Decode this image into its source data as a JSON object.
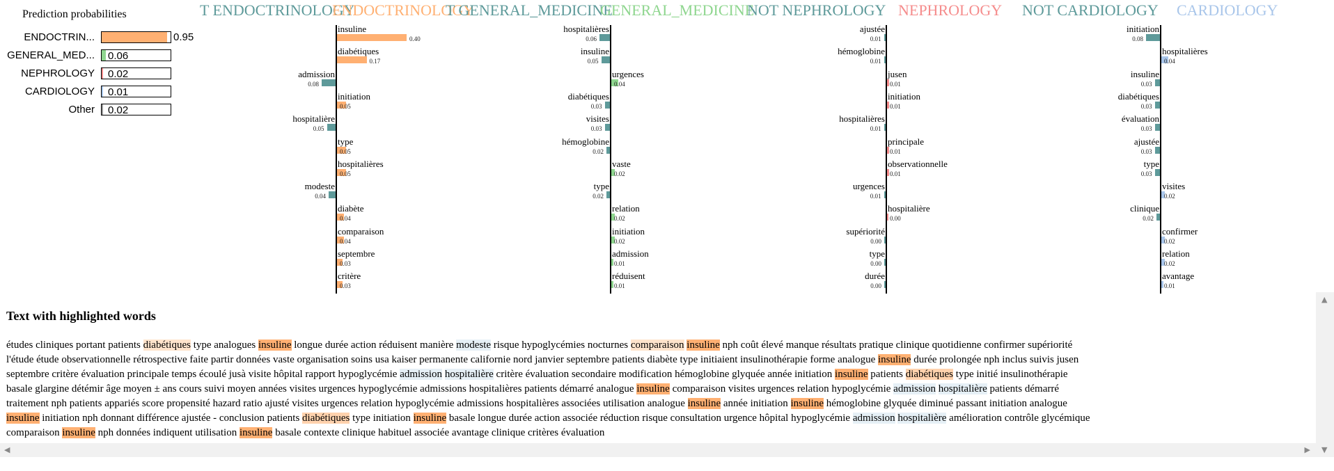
{
  "colors": {
    "endocrinology": "#ffb072",
    "general_medicine": "#8fd68f",
    "nephrology": "#f58c8c",
    "cardiology": "#a9c6ea",
    "not_class": "#5e9a9a"
  },
  "prediction": {
    "title": "Prediction probabilities",
    "rows": [
      {
        "label": "ENDOCTRIN...",
        "value": 0.95,
        "text": "0.95",
        "color": "#ffb072"
      },
      {
        "label": "GENERAL_MED...",
        "value": 0.06,
        "text": "0.06",
        "color": "#8fd68f"
      },
      {
        "label": "NEPHROLOGY",
        "value": 0.02,
        "text": "0.02",
        "color": "#f58c8c"
      },
      {
        "label": "CARDIOLOGY",
        "value": 0.01,
        "text": "0.01",
        "color": "#a9c6ea"
      },
      {
        "label": "Other",
        "value": 0.02,
        "text": "0.02",
        "color": "#999999"
      }
    ]
  },
  "legend": [
    {
      "text": "T ENDOCTRINOLOGY",
      "color": "#5e9a9a"
    },
    {
      "text": "ENDOCTRINOLOGY",
      "color": "#ffb072"
    },
    {
      "text": "T GENERAL_MEDICINE",
      "color": "#5e9a9a"
    },
    {
      "text": "GENERAL_MEDICINE",
      "color": "#8fd68f"
    },
    {
      "text": "NOT NEPHROLOGY",
      "color": "#5e9a9a"
    },
    {
      "text": "NEPHROLOGY",
      "color": "#f58c8c"
    },
    {
      "text": "NOT CARDIOLOGY",
      "color": "#5e9a9a"
    },
    {
      "text": "CARDIOLOGY",
      "color": "#a9c6ea"
    }
  ],
  "panels": [
    {
      "pos_color": "#ffb072",
      "features": [
        {
          "name": "insuline",
          "value": 0.4,
          "text": "0.40",
          "side": "right"
        },
        {
          "name": "diabétiques",
          "value": 0.17,
          "text": "0.17",
          "side": "right"
        },
        {
          "name": "admission",
          "value": 0.08,
          "text": "0.08",
          "side": "left"
        },
        {
          "name": "initiation",
          "value": 0.05,
          "text": "0.05",
          "side": "right"
        },
        {
          "name": "hospitalière",
          "value": 0.05,
          "text": "0.05",
          "side": "left"
        },
        {
          "name": "type",
          "value": 0.05,
          "text": "0.05",
          "side": "right"
        },
        {
          "name": "hospitalières",
          "value": 0.05,
          "text": "0.05",
          "side": "right"
        },
        {
          "name": "modeste",
          "value": 0.04,
          "text": "0.04",
          "side": "left"
        },
        {
          "name": "diabète",
          "value": 0.04,
          "text": "0.04",
          "side": "right"
        },
        {
          "name": "comparaison",
          "value": 0.04,
          "text": "0.04",
          "side": "right"
        },
        {
          "name": "septembre",
          "value": 0.03,
          "text": "0.03",
          "side": "right"
        },
        {
          "name": "critère",
          "value": 0.03,
          "text": "0.03",
          "side": "right"
        }
      ]
    },
    {
      "pos_color": "#8fd68f",
      "features": [
        {
          "name": "hospitalières",
          "value": 0.06,
          "text": "0.06",
          "side": "left"
        },
        {
          "name": "insuline",
          "value": 0.05,
          "text": "0.05",
          "side": "left"
        },
        {
          "name": "urgences",
          "value": 0.04,
          "text": "0.04",
          "side": "right"
        },
        {
          "name": "diabétiques",
          "value": 0.03,
          "text": "0.03",
          "side": "left"
        },
        {
          "name": "visites",
          "value": 0.03,
          "text": "0.03",
          "side": "left"
        },
        {
          "name": "hémoglobine",
          "value": 0.02,
          "text": "0.02",
          "side": "left"
        },
        {
          "name": "vaste",
          "value": 0.02,
          "text": "0.02",
          "side": "right"
        },
        {
          "name": "type",
          "value": 0.02,
          "text": "0.02",
          "side": "left"
        },
        {
          "name": "relation",
          "value": 0.02,
          "text": "0.02",
          "side": "right"
        },
        {
          "name": "initiation",
          "value": 0.02,
          "text": "0.02",
          "side": "right"
        },
        {
          "name": "admission",
          "value": 0.01,
          "text": "0.01",
          "side": "right"
        },
        {
          "name": "réduisent",
          "value": 0.01,
          "text": "0.01",
          "side": "right"
        }
      ]
    },
    {
      "pos_color": "#f58c8c",
      "features": [
        {
          "name": "ajustée",
          "value": 0.01,
          "text": "0.01",
          "side": "left"
        },
        {
          "name": "hémoglobine",
          "value": 0.01,
          "text": "0.01",
          "side": "left"
        },
        {
          "name": "jusen",
          "value": 0.01,
          "text": "0.01",
          "side": "right"
        },
        {
          "name": "initiation",
          "value": 0.01,
          "text": "0.01",
          "side": "right"
        },
        {
          "name": "hospitalières",
          "value": 0.01,
          "text": "0.01",
          "side": "left"
        },
        {
          "name": "principale",
          "value": 0.01,
          "text": "0.01",
          "side": "right"
        },
        {
          "name": "observationnelle",
          "value": 0.01,
          "text": "0.01",
          "side": "right"
        },
        {
          "name": "urgences",
          "value": 0.01,
          "text": "0.01",
          "side": "left"
        },
        {
          "name": "hospitalière",
          "value": 0.0,
          "text": "0.00",
          "side": "right"
        },
        {
          "name": "supériorité",
          "value": 0.0,
          "text": "0.00",
          "side": "left"
        },
        {
          "name": "type",
          "value": 0.0,
          "text": "0.00",
          "side": "left"
        },
        {
          "name": "durée",
          "value": 0.0,
          "text": "0.00",
          "side": "left"
        }
      ]
    },
    {
      "pos_color": "#a9c6ea",
      "features": [
        {
          "name": "initiation",
          "value": 0.08,
          "text": "0.08",
          "side": "left"
        },
        {
          "name": "hospitalières",
          "value": 0.04,
          "text": "0.04",
          "side": "right"
        },
        {
          "name": "insuline",
          "value": 0.03,
          "text": "0.03",
          "side": "left"
        },
        {
          "name": "diabétiques",
          "value": 0.03,
          "text": "0.03",
          "side": "left"
        },
        {
          "name": "évaluation",
          "value": 0.03,
          "text": "0.03",
          "side": "left"
        },
        {
          "name": "ajustée",
          "value": 0.03,
          "text": "0.03",
          "side": "left"
        },
        {
          "name": "type",
          "value": 0.03,
          "text": "0.03",
          "side": "left"
        },
        {
          "name": "visites",
          "value": 0.02,
          "text": "0.02",
          "side": "right"
        },
        {
          "name": "clinique",
          "value": 0.02,
          "text": "0.02",
          "side": "left"
        },
        {
          "name": "confirmer",
          "value": 0.02,
          "text": "0.02",
          "side": "right"
        },
        {
          "name": "relation",
          "value": 0.02,
          "text": "0.02",
          "side": "right"
        },
        {
          "name": "avantage",
          "value": 0.01,
          "text": "0.01",
          "side": "right"
        }
      ]
    }
  ],
  "highlight": {
    "title": "Text with highlighted words",
    "lines": [
      "études cliniques portant patients |diabétiques:light| type analogues |insuline:strong| longue durée action réduisent manière |modeste:blue| risque hypoglycémies nocturnes |comparaison:light| |insuline:strong| nph coût élevé manque résultats pratique clinique quotidienne confirmer supériorité",
      "l'étude étude observationnelle rétrospective faite partir données vaste organisation soins usa kaiser permanente californie nord janvier septembre patients diabète type initiaient insulinothérapie forme analogue |insuline:strong| durée prolongée nph inclus suivis jusen",
      "septembre critère évaluation principale temps écoulé jusà visite hôpital rapport hypoglycémie |admission:blue| |hospitalière:blue| critère évaluation secondaire modification hémoglobine glyquée année initiation |insuline:strong| patients |diabétiques:medium| type initié insulinothérapie",
      "basale glargine détémir âge moyen ± ans cours suivi moyen années visites urgences hypoglycémie admissions hospitalières patients démarré analogue |insuline:strong| comparaison visites urgences relation hypoglycémie |admission:blue| |hospitalière:blue| patients démarré",
      "traitement nph patients appariés score propensité hazard ratio ajusté visites urgences relation hypoglycémie admissions hospitalières associées utilisation analogue |insuline:strong| année initiation |insuline:strong| hémoglobine glyquée diminué passant initiation analogue",
      "|insuline:strong| initiation nph donnant différence ajustée - conclusion patients |diabétiques:medium| type initiation |insuline:strong| basale longue durée action associée réduction risque consultation urgence hôpital hypoglycémie |admission:blue| |hospitalière:blue| amélioration contrôle glycémique",
      "comparaison |insuline:strong| nph données indiquent utilisation |insuline:strong| basale contexte clinique habituel associée avantage clinique critères évaluation"
    ]
  }
}
